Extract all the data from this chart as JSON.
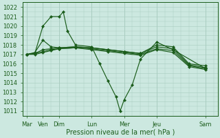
{
  "bg_color": "#cce8e0",
  "grid_color": "#a8ccbf",
  "line_color": "#1a5c1a",
  "xlabel": "Pression niveau de la mer( hPa )",
  "ylim": [
    1010.5,
    1022.5
  ],
  "yticks": [
    1011,
    1012,
    1013,
    1014,
    1015,
    1016,
    1017,
    1018,
    1019,
    1020,
    1021,
    1022
  ],
  "x_tick_pos": [
    0,
    2,
    4,
    8,
    12,
    16,
    22
  ],
  "x_tick_labels": [
    "Mar",
    "Ven",
    "Dim",
    "Lun",
    "Mer",
    "Jeu",
    "Sam"
  ],
  "xlim": [
    -0.5,
    23.5
  ],
  "series1_x": [
    0,
    1,
    2,
    3,
    4,
    4.5,
    5,
    6,
    8,
    9,
    10,
    11,
    11.5,
    12,
    13,
    14,
    16,
    18,
    22
  ],
  "series1_y": [
    1017.0,
    1017.1,
    1020.0,
    1021.0,
    1021.0,
    1021.5,
    1019.5,
    1018.0,
    1017.8,
    1016.0,
    1014.2,
    1012.5,
    1011.0,
    1012.2,
    1013.8,
    1016.5,
    1018.3,
    1017.5,
    1015.5
  ],
  "series2_x": [
    0,
    1,
    2,
    3,
    4,
    6,
    8,
    10,
    12,
    14,
    16,
    18,
    20,
    22
  ],
  "series2_y": [
    1017.0,
    1017.2,
    1018.5,
    1017.8,
    1017.7,
    1017.8,
    1017.7,
    1017.5,
    1017.3,
    1017.1,
    1018.0,
    1017.8,
    1016.0,
    1015.8
  ],
  "series3_x": [
    0,
    1,
    2,
    3,
    4,
    6,
    8,
    10,
    12,
    14,
    16,
    18,
    20,
    22
  ],
  "series3_y": [
    1017.0,
    1017.1,
    1017.5,
    1017.6,
    1017.7,
    1017.8,
    1017.7,
    1017.5,
    1017.3,
    1017.1,
    1017.8,
    1017.6,
    1015.9,
    1015.6
  ],
  "series4_x": [
    0,
    1,
    2,
    3,
    4,
    6,
    8,
    10,
    12,
    14,
    16,
    18,
    20,
    22
  ],
  "series4_y": [
    1017.0,
    1017.1,
    1017.3,
    1017.5,
    1017.6,
    1017.7,
    1017.6,
    1017.4,
    1017.2,
    1017.0,
    1017.6,
    1017.4,
    1015.8,
    1015.5
  ],
  "series5_x": [
    0,
    1,
    2,
    3,
    4,
    6,
    8,
    10,
    12,
    14,
    16,
    18,
    20,
    22
  ],
  "series5_y": [
    1017.0,
    1017.0,
    1017.2,
    1017.4,
    1017.6,
    1017.7,
    1017.5,
    1017.3,
    1017.1,
    1016.9,
    1017.5,
    1017.2,
    1015.7,
    1015.4
  ]
}
